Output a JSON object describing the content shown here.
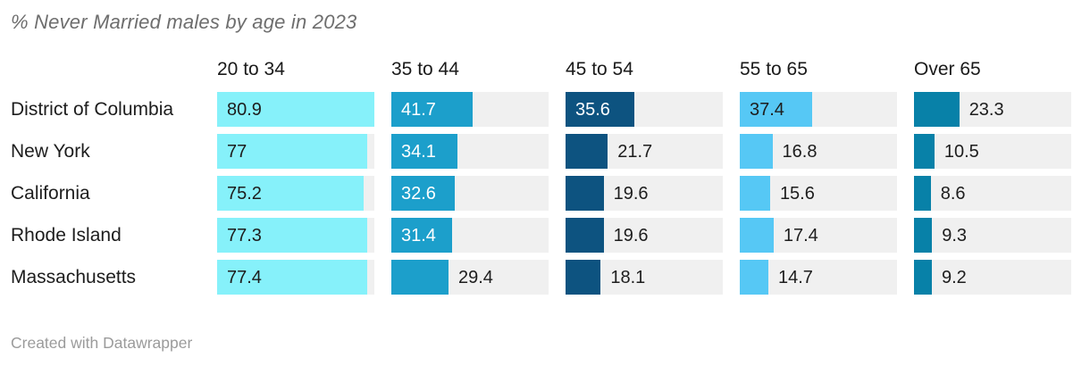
{
  "title": "% Never Married males by age in 2023",
  "footer": {
    "credit": "Created with Datawrapper"
  },
  "colors": {
    "track": "#F0F0F0",
    "text_dark": "#1D1D1D",
    "title": "#6E6E6E",
    "footer": "#9B9B9B"
  },
  "columns": [
    {
      "label": "20 to 34",
      "bar_color": "#86F1FA",
      "inside_label_color": "#1D1D1D"
    },
    {
      "label": "35 to 44",
      "bar_color": "#1C9FCB",
      "inside_label_color": "#FFFFFF"
    },
    {
      "label": "45 to 54",
      "bar_color": "#0D5380",
      "inside_label_color": "#FFFFFF"
    },
    {
      "label": "55 to 65",
      "bar_color": "#56C8F5",
      "inside_label_color": "#1D1D1D"
    },
    {
      "label": "Over 65",
      "bar_color": "#0881A8",
      "inside_label_color": "#1D1D1D"
    }
  ],
  "rows": [
    {
      "label": "District of Columbia",
      "cells": [
        {
          "value": 80.9,
          "display": "80.9",
          "inside": true
        },
        {
          "value": 41.7,
          "display": "41.7",
          "inside": true
        },
        {
          "value": 35.6,
          "display": "35.6",
          "inside": true
        },
        {
          "value": 37.4,
          "display": "37.4",
          "inside": true
        },
        {
          "value": 23.3,
          "display": "23.3",
          "inside": false
        }
      ]
    },
    {
      "label": "New York",
      "cells": [
        {
          "value": 77,
          "display": "77",
          "inside": true
        },
        {
          "value": 34.1,
          "display": "34.1",
          "inside": true
        },
        {
          "value": 21.7,
          "display": "21.7",
          "inside": false
        },
        {
          "value": 16.8,
          "display": "16.8",
          "inside": false
        },
        {
          "value": 10.5,
          "display": "10.5",
          "inside": false
        }
      ]
    },
    {
      "label": "California",
      "cells": [
        {
          "value": 75.2,
          "display": "75.2",
          "inside": true
        },
        {
          "value": 32.6,
          "display": "32.6",
          "inside": true
        },
        {
          "value": 19.6,
          "display": "19.6",
          "inside": false
        },
        {
          "value": 15.6,
          "display": "15.6",
          "inside": false
        },
        {
          "value": 8.6,
          "display": "8.6",
          "inside": false
        }
      ]
    },
    {
      "label": "Rhode Island",
      "cells": [
        {
          "value": 77.3,
          "display": "77.3",
          "inside": true
        },
        {
          "value": 31.4,
          "display": "31.4",
          "inside": true
        },
        {
          "value": 19.6,
          "display": "19.6",
          "inside": false
        },
        {
          "value": 17.4,
          "display": "17.4",
          "inside": false
        },
        {
          "value": 9.3,
          "display": "9.3",
          "inside": false
        }
      ]
    },
    {
      "label": "Massachusetts",
      "cells": [
        {
          "value": 77.4,
          "display": "77.4",
          "inside": true
        },
        {
          "value": 29.4,
          "display": "29.4",
          "inside": false
        },
        {
          "value": 18.1,
          "display": "18.1",
          "inside": false
        },
        {
          "value": 14.7,
          "display": "14.7",
          "inside": false
        },
        {
          "value": 9.2,
          "display": "9.2",
          "inside": false
        }
      ]
    }
  ],
  "chart_data": {
    "type": "bar",
    "orientation": "horizontal",
    "title": "% Never Married males by age in 2023",
    "categories": [
      "District of Columbia",
      "New York",
      "California",
      "Rhode Island",
      "Massachusetts"
    ],
    "series": [
      {
        "name": "20 to 34",
        "values": [
          80.9,
          77,
          75.2,
          77.3,
          77.4
        ]
      },
      {
        "name": "35 to 44",
        "values": [
          41.7,
          34.1,
          32.6,
          31.4,
          29.4
        ]
      },
      {
        "name": "45 to 54",
        "values": [
          35.6,
          21.7,
          19.6,
          19.6,
          18.1
        ]
      },
      {
        "name": "55 to 65",
        "values": [
          37.4,
          16.8,
          15.6,
          17.4,
          14.7
        ]
      },
      {
        "name": "Over 65",
        "values": [
          23.3,
          10.5,
          8.6,
          9.3,
          9.2
        ]
      }
    ],
    "xlim": [
      0,
      80.9
    ],
    "grid": false,
    "legend_position": "column-headers",
    "value_labels": true,
    "credit": "Created with Datawrapper"
  }
}
